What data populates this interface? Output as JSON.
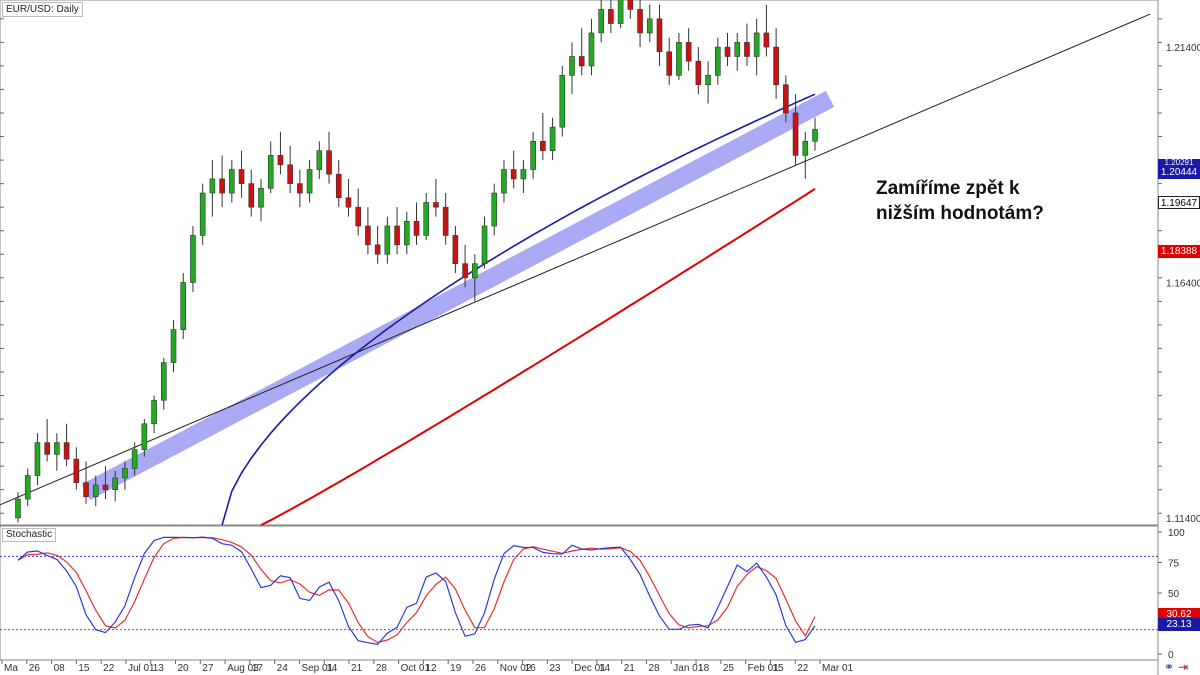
{
  "symbol": "EUR/USD: Daily",
  "indicator_label": "Stochastic",
  "annotation": {
    "line1": "Zamíříme zpět k",
    "line2": "nižším hodnotám?"
  },
  "price_tags": [
    {
      "value": "1.20444",
      "color": "#1a1aa6",
      "style": "fill"
    },
    {
      "value": "1.20291",
      "color": "#ffffff",
      "style": "partial"
    },
    {
      "value": "1.19647",
      "color": "#000000",
      "style": "current"
    },
    {
      "value": "1.18388",
      "color": "#e00000",
      "style": "fill"
    },
    {
      "value": "30.62",
      "color": "#e00000",
      "style": "fill"
    },
    {
      "value": "23.13",
      "color": "#1a1aa6",
      "style": "fill"
    }
  ],
  "colors": {
    "bull": "#22aa22",
    "bear": "#cc1111",
    "ma_fast": "#1a1aa6",
    "ma_slow": "#e00000",
    "trend_band": "#8c8cf0",
    "stoch_k": "#2a3bd6",
    "stoch_d": "#e83030"
  },
  "icons": [
    "link-icon",
    "arrow-right-icon"
  ],
  "chart_data": {
    "type": "candlestick",
    "title": "EUR/USD: Daily",
    "price_axis": {
      "ticks": [
        "1.21400",
        "1.16400",
        "1.11400"
      ],
      "range": [
        1.1125,
        1.224
      ]
    },
    "time_axis": {
      "labels": [
        "Ma",
        "26",
        "08",
        "15",
        "22",
        "Jul 01",
        "13",
        "20",
        "27",
        "Aug 03",
        "17",
        "24",
        "Sep 01",
        "14",
        "21",
        "28",
        "Oct 01",
        "12",
        "19",
        "26",
        "Nov 02",
        "16",
        "23",
        "Dec 01",
        "14",
        "21",
        "28",
        "Jan 01",
        "18",
        "25",
        "Feb 01",
        "15",
        "22",
        "Mar 01"
      ]
    },
    "candles_ohlc_approx": [
      [
        1.114,
        1.1195,
        1.113,
        1.118
      ],
      [
        1.118,
        1.1245,
        1.1165,
        1.123
      ],
      [
        1.123,
        1.132,
        1.121,
        1.13
      ],
      [
        1.13,
        1.135,
        1.126,
        1.1275
      ],
      [
        1.1275,
        1.132,
        1.124,
        1.13
      ],
      [
        1.13,
        1.134,
        1.125,
        1.1265
      ],
      [
        1.1265,
        1.129,
        1.12,
        1.1215
      ],
      [
        1.1215,
        1.126,
        1.117,
        1.1185
      ],
      [
        1.1185,
        1.123,
        1.1165,
        1.121
      ],
      [
        1.121,
        1.125,
        1.118,
        1.12
      ],
      [
        1.12,
        1.124,
        1.1175,
        1.1225
      ],
      [
        1.1225,
        1.126,
        1.12,
        1.1245
      ],
      [
        1.1245,
        1.13,
        1.123,
        1.1285
      ],
      [
        1.1285,
        1.135,
        1.127,
        1.134
      ],
      [
        1.134,
        1.14,
        1.132,
        1.139
      ],
      [
        1.139,
        1.148,
        1.137,
        1.147
      ],
      [
        1.147,
        1.156,
        1.145,
        1.154
      ],
      [
        1.154,
        1.166,
        1.152,
        1.164
      ],
      [
        1.164,
        1.176,
        1.162,
        1.174
      ],
      [
        1.174,
        1.185,
        1.172,
        1.183
      ],
      [
        1.183,
        1.19,
        1.178,
        1.186
      ],
      [
        1.186,
        1.191,
        1.18,
        1.183
      ],
      [
        1.183,
        1.19,
        1.181,
        1.188
      ],
      [
        1.188,
        1.192,
        1.182,
        1.185
      ],
      [
        1.185,
        1.188,
        1.178,
        1.18
      ],
      [
        1.18,
        1.186,
        1.177,
        1.184
      ],
      [
        1.184,
        1.194,
        1.183,
        1.191
      ],
      [
        1.191,
        1.196,
        1.187,
        1.189
      ],
      [
        1.189,
        1.193,
        1.183,
        1.185
      ],
      [
        1.185,
        1.188,
        1.18,
        1.183
      ],
      [
        1.183,
        1.19,
        1.181,
        1.188
      ],
      [
        1.188,
        1.194,
        1.186,
        1.192
      ],
      [
        1.192,
        1.196,
        1.185,
        1.187
      ],
      [
        1.187,
        1.19,
        1.18,
        1.182
      ],
      [
        1.182,
        1.186,
        1.178,
        1.18
      ],
      [
        1.18,
        1.184,
        1.174,
        1.176
      ],
      [
        1.176,
        1.18,
        1.17,
        1.172
      ],
      [
        1.172,
        1.176,
        1.168,
        1.17
      ],
      [
        1.17,
        1.178,
        1.168,
        1.176
      ],
      [
        1.176,
        1.18,
        1.17,
        1.172
      ],
      [
        1.172,
        1.179,
        1.17,
        1.177
      ],
      [
        1.177,
        1.181,
        1.172,
        1.174
      ],
      [
        1.174,
        1.183,
        1.173,
        1.181
      ],
      [
        1.181,
        1.186,
        1.178,
        1.18
      ],
      [
        1.18,
        1.183,
        1.172,
        1.174
      ],
      [
        1.174,
        1.176,
        1.166,
        1.168
      ],
      [
        1.168,
        1.172,
        1.163,
        1.165
      ],
      [
        1.165,
        1.17,
        1.16,
        1.168
      ],
      [
        1.168,
        1.178,
        1.167,
        1.176
      ],
      [
        1.176,
        1.185,
        1.174,
        1.183
      ],
      [
        1.183,
        1.19,
        1.181,
        1.188
      ],
      [
        1.188,
        1.192,
        1.184,
        1.186
      ],
      [
        1.186,
        1.19,
        1.183,
        1.188
      ],
      [
        1.188,
        1.196,
        1.186,
        1.194
      ],
      [
        1.194,
        1.2,
        1.19,
        1.192
      ],
      [
        1.192,
        1.199,
        1.19,
        1.197
      ],
      [
        1.197,
        1.21,
        1.195,
        1.208
      ],
      [
        1.208,
        1.215,
        1.204,
        1.212
      ],
      [
        1.212,
        1.218,
        1.208,
        1.21
      ],
      [
        1.21,
        1.22,
        1.208,
        1.217
      ],
      [
        1.217,
        1.224,
        1.215,
        1.222
      ],
      [
        1.222,
        1.226,
        1.217,
        1.219
      ],
      [
        1.219,
        1.227,
        1.218,
        1.225
      ],
      [
        1.225,
        1.23,
        1.22,
        1.222
      ],
      [
        1.222,
        1.226,
        1.214,
        1.217
      ],
      [
        1.217,
        1.223,
        1.215,
        1.22
      ],
      [
        1.22,
        1.223,
        1.21,
        1.213
      ],
      [
        1.213,
        1.216,
        1.206,
        1.208
      ],
      [
        1.208,
        1.217,
        1.207,
        1.215
      ],
      [
        1.215,
        1.218,
        1.209,
        1.211
      ],
      [
        1.211,
        1.214,
        1.204,
        1.206
      ],
      [
        1.206,
        1.211,
        1.202,
        1.208
      ],
      [
        1.208,
        1.216,
        1.206,
        1.214
      ],
      [
        1.214,
        1.217,
        1.21,
        1.212
      ],
      [
        1.212,
        1.217,
        1.209,
        1.215
      ],
      [
        1.215,
        1.219,
        1.21,
        1.212
      ],
      [
        1.212,
        1.22,
        1.208,
        1.217
      ],
      [
        1.217,
        1.223,
        1.212,
        1.214
      ],
      [
        1.214,
        1.218,
        1.203,
        1.206
      ],
      [
        1.206,
        1.208,
        1.198,
        1.2
      ],
      [
        1.2,
        1.204,
        1.189,
        1.191
      ],
      [
        1.191,
        1.196,
        1.186,
        1.194
      ],
      [
        1.194,
        1.199,
        1.192,
        1.1965
      ]
    ],
    "series": [
      {
        "type": "line",
        "color": "#1a1aa6",
        "last": 1.20444
      },
      {
        "type": "line",
        "color": "#e00000",
        "last": 1.18388
      },
      {
        "type": "trendline",
        "color": "#222222"
      }
    ],
    "stochastic": {
      "ylim": [
        0,
        100
      ],
      "ticks": [
        "100",
        "75",
        "50",
        "25",
        "0"
      ],
      "levels": [
        80,
        20
      ],
      "k_last": 23.13,
      "d_last": 30.62
    }
  }
}
